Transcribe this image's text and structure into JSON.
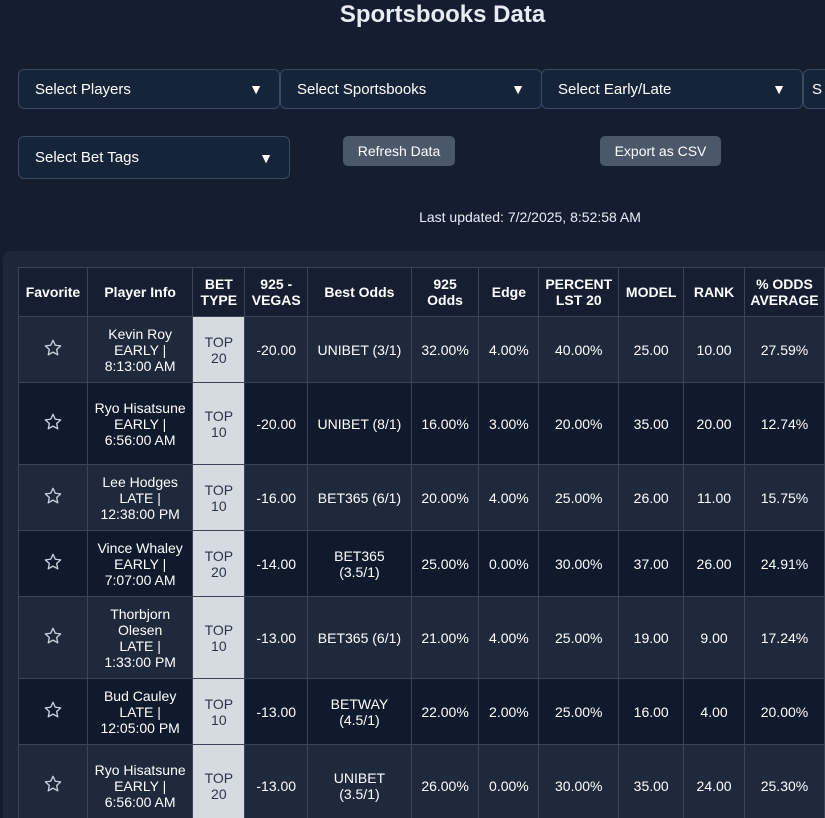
{
  "title": "Sportsbooks Data",
  "filters": {
    "players": "Select Players",
    "sportsbooks": "Select Sportsbooks",
    "early_late": "Select Early/Late",
    "partial": "S",
    "bet_tags": "Select Bet Tags",
    "arrow": "▼"
  },
  "buttons": {
    "refresh": "Refresh Data",
    "export": "Export as CSV"
  },
  "last_updated": "Last updated: 7/2/2025, 8:52:58 AM",
  "table": {
    "headers": [
      "Favorite",
      "Player Info",
      "BET TYPE",
      "925 - VEGAS",
      "Best Odds",
      "925 Odds",
      "Edge",
      "PERCENT LST 20",
      "MODEL",
      "RANK",
      "% ODDS AVERAGE"
    ],
    "rows": [
      {
        "name": "Kevin Roy",
        "session": "EARLY |",
        "time": "8:13:00 AM",
        "bet_type": "TOP 20",
        "vegas": "-20.00",
        "best_odds": "UNIBET (3/1)",
        "odds925": "32.00%",
        "edge": "4.00%",
        "pct20": "40.00%",
        "model": "25.00",
        "rank": "10.00",
        "avg": "27.59%"
      },
      {
        "name": "Ryo Hisatsune",
        "session": "EARLY |",
        "time": "6:56:00 AM",
        "bet_type": "TOP 10",
        "vegas": "-20.00",
        "best_odds": "UNIBET (8/1)",
        "odds925": "16.00%",
        "edge": "3.00%",
        "pct20": "20.00%",
        "model": "35.00",
        "rank": "20.00",
        "avg": "12.74%"
      },
      {
        "name": "Lee Hodges",
        "session": "LATE |",
        "time": "12:38:00 PM",
        "bet_type": "TOP 10",
        "vegas": "-16.00",
        "best_odds": "BET365 (6/1)",
        "odds925": "20.00%",
        "edge": "4.00%",
        "pct20": "25.00%",
        "model": "26.00",
        "rank": "11.00",
        "avg": "15.75%"
      },
      {
        "name": "Vince Whaley",
        "session": "EARLY |",
        "time": "7:07:00 AM",
        "bet_type": "TOP 20",
        "vegas": "-14.00",
        "best_odds": "BET365 (3.5/1)",
        "odds925": "25.00%",
        "edge": "0.00%",
        "pct20": "30.00%",
        "model": "37.00",
        "rank": "26.00",
        "avg": "24.91%"
      },
      {
        "name": "Thorbjorn Olesen",
        "session": "LATE |",
        "time": "1:33:00 PM",
        "bet_type": "TOP 10",
        "vegas": "-13.00",
        "best_odds": "BET365 (6/1)",
        "odds925": "21.00%",
        "edge": "4.00%",
        "pct20": "25.00%",
        "model": "19.00",
        "rank": "9.00",
        "avg": "17.24%"
      },
      {
        "name": "Bud Cauley",
        "session": "LATE |",
        "time": "12:05:00 PM",
        "bet_type": "TOP 10",
        "vegas": "-13.00",
        "best_odds": "BETWAY (4.5/1)",
        "odds925": "22.00%",
        "edge": "2.00%",
        "pct20": "25.00%",
        "model": "16.00",
        "rank": "4.00",
        "avg": "20.00%"
      },
      {
        "name": "Ryo Hisatsune",
        "session": "EARLY |",
        "time": "6:56:00 AM",
        "bet_type": "TOP 20",
        "vegas": "-13.00",
        "best_odds": "UNIBET (3.5/1)",
        "odds925": "26.00%",
        "edge": "0.00%",
        "pct20": "30.00%",
        "model": "35.00",
        "rank": "24.00",
        "avg": "25.30%"
      }
    ]
  },
  "colors": {
    "background": "#141e30",
    "bet_type_cell": "#d6dbe1",
    "button": "#4a5869"
  },
  "icons": {
    "favorite": "star-outline-icon",
    "dropdown": "caret-down-icon"
  }
}
